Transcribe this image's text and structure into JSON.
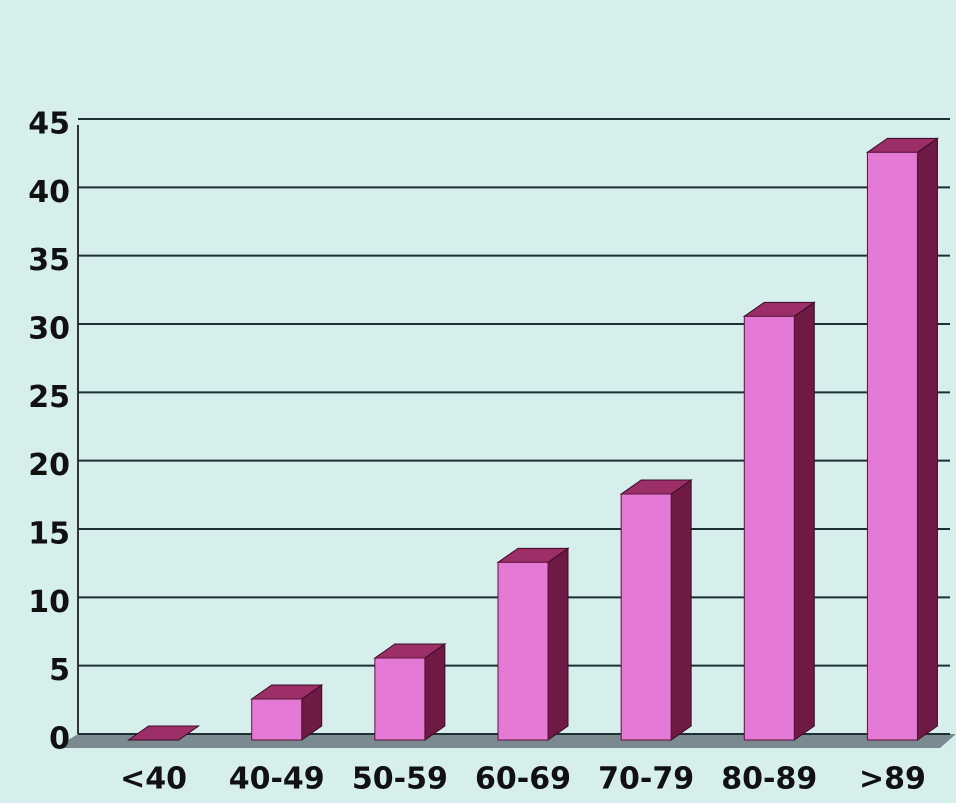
{
  "chart_data": {
    "type": "bar3d",
    "categories": [
      "<40",
      "40-49",
      "50-59",
      "60-69",
      "70-79",
      "80-89",
      ">89"
    ],
    "values": [
      0,
      3,
      6,
      13,
      18,
      31,
      43
    ],
    "color": "#e57ad6",
    "ylim": [
      0,
      45
    ],
    "yticks": [
      0,
      5,
      10,
      15,
      20,
      25,
      30,
      35,
      40,
      45
    ],
    "grid": true
  }
}
